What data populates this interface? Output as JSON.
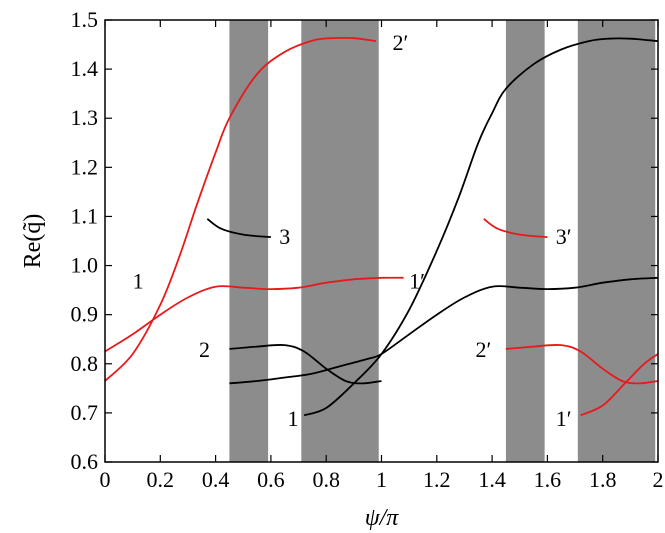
{
  "chart_data": {
    "type": "line",
    "xlabel": "ψ/π",
    "ylabel": "Re(q̃)",
    "xlim": [
      0,
      2
    ],
    "ylim": [
      0.6,
      1.5
    ],
    "x_ticks": [
      "0",
      "0.2",
      "0.4",
      "0.6",
      "0.8",
      "1",
      "1.2",
      "1.4",
      "1.6",
      "1.8",
      "2"
    ],
    "y_ticks": [
      "0.6",
      "0.7",
      "0.8",
      "0.9",
      "1.0",
      "1.1",
      "1.2",
      "1.3",
      "1.4",
      "1.5"
    ],
    "grid": false,
    "shaded_bands": [
      [
        0.45,
        0.59
      ],
      [
        0.71,
        0.99
      ],
      [
        1.45,
        1.59
      ],
      [
        1.71,
        1.99
      ]
    ],
    "band_color": "#8c8c8c",
    "series": [
      {
        "color": "#e8191b",
        "x": [
          0,
          0.1,
          0.2,
          0.27,
          0.33,
          0.4,
          0.45,
          0.55,
          0.65,
          0.75,
          0.82,
          0.9,
          0.98
        ],
        "y": [
          0.765,
          0.82,
          0.92,
          1.02,
          1.12,
          1.23,
          1.3,
          1.39,
          1.435,
          1.458,
          1.463,
          1.463,
          1.457
        ]
      },
      {
        "color": "#e8191b",
        "x": [
          0,
          0.1,
          0.2,
          0.3,
          0.4,
          0.5,
          0.6,
          0.7,
          0.8,
          0.9,
          1.0,
          1.08
        ],
        "y": [
          0.825,
          0.86,
          0.9,
          0.935,
          0.957,
          0.955,
          0.952,
          0.955,
          0.965,
          0.972,
          0.975,
          0.975
        ]
      },
      {
        "color": "#000000",
        "x": [
          0.37,
          0.42,
          0.5,
          0.6
        ],
        "y": [
          1.095,
          1.075,
          1.063,
          1.058
        ]
      },
      {
        "color": "#000000",
        "x": [
          0.45,
          0.55,
          0.65,
          0.72,
          0.8,
          0.87,
          0.93,
          1.0
        ],
        "y": [
          0.83,
          0.835,
          0.838,
          0.825,
          0.79,
          0.765,
          0.76,
          0.765
        ]
      },
      {
        "color": "#000000",
        "x": [
          0.72,
          0.8,
          0.9,
          1.0,
          1.1,
          1.2,
          1.28,
          1.35,
          1.4,
          1.45,
          1.55,
          1.65,
          1.75,
          1.82,
          1.9,
          2.0
        ],
        "y": [
          0.695,
          0.71,
          0.76,
          0.82,
          0.91,
          1.03,
          1.14,
          1.25,
          1.31,
          1.36,
          1.41,
          1.44,
          1.457,
          1.462,
          1.462,
          1.457
        ]
      },
      {
        "color": "#000000",
        "x": [
          0.45,
          0.55,
          0.65,
          0.75,
          0.85,
          0.95,
          1.0,
          1.1,
          1.2,
          1.3,
          1.4,
          1.5,
          1.6,
          1.7,
          1.8,
          1.9,
          2.0
        ],
        "y": [
          0.76,
          0.765,
          0.772,
          0.78,
          0.795,
          0.81,
          0.82,
          0.86,
          0.9,
          0.935,
          0.957,
          0.955,
          0.952,
          0.955,
          0.965,
          0.972,
          0.975
        ]
      },
      {
        "color": "#e8191b",
        "x": [
          1.37,
          1.42,
          1.5,
          1.6
        ],
        "y": [
          1.095,
          1.075,
          1.063,
          1.058
        ]
      },
      {
        "color": "#e8191b",
        "x": [
          1.45,
          1.55,
          1.65,
          1.72,
          1.8,
          1.87,
          1.93,
          2.0
        ],
        "y": [
          0.83,
          0.835,
          0.838,
          0.825,
          0.79,
          0.765,
          0.76,
          0.765
        ]
      },
      {
        "color": "#e8191b",
        "x": [
          1.72,
          1.8,
          1.88,
          1.95,
          2.0
        ],
        "y": [
          0.695,
          0.715,
          0.76,
          0.8,
          0.82
        ]
      }
    ],
    "annotations": [
      {
        "text": "2′",
        "x": 1.04,
        "y": 1.455
      },
      {
        "text": "3",
        "x": 0.63,
        "y": 1.06
      },
      {
        "text": "1",
        "x": 0.1,
        "y": 0.97
      },
      {
        "text": "1′",
        "x": 1.1,
        "y": 0.97
      },
      {
        "text": "2",
        "x": 0.34,
        "y": 0.83
      },
      {
        "text": "1",
        "x": 0.66,
        "y": 0.69
      },
      {
        "text": "3′",
        "x": 1.63,
        "y": 1.06
      },
      {
        "text": "2′",
        "x": 1.34,
        "y": 0.83
      },
      {
        "text": "1′",
        "x": 1.63,
        "y": 0.69
      }
    ]
  }
}
